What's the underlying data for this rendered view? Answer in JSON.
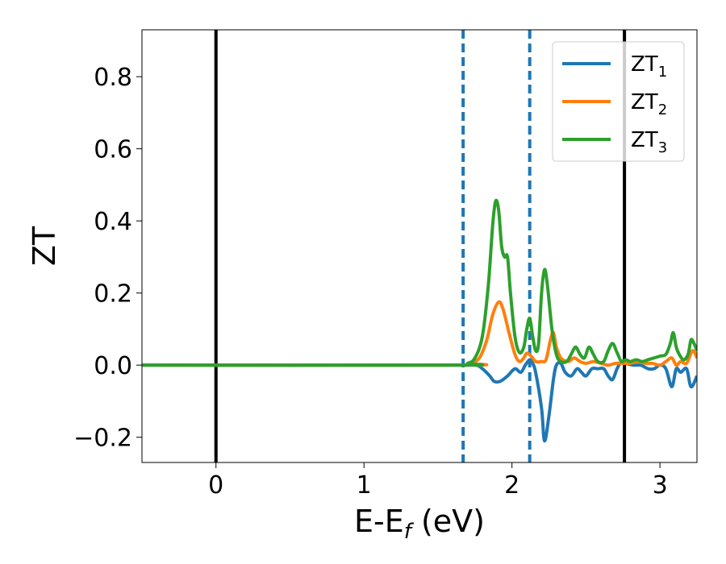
{
  "chart_data": {
    "type": "line",
    "xlabel": {
      "main": "E-E",
      "sub": "f",
      "unit": " (eV)"
    },
    "ylabel": "ZT",
    "xlim": [
      -0.5,
      3.25
    ],
    "ylim": [
      -0.27,
      0.93
    ],
    "xticks": [
      0,
      1,
      2,
      3
    ],
    "xtick_labels": [
      "0",
      "1",
      "2",
      "3"
    ],
    "yticks": [
      -0.2,
      0.0,
      0.2,
      0.4,
      0.6,
      0.8
    ],
    "ytick_labels": [
      "−0.2",
      "0.0",
      "0.2",
      "0.4",
      "0.6",
      "0.8"
    ],
    "grid": false,
    "legend_position": "upper right",
    "vertical_lines": [
      {
        "x": 0,
        "style": "solid",
        "color": "#000000"
      },
      {
        "x": 2.76,
        "style": "solid",
        "color": "#000000"
      },
      {
        "x": 1.67,
        "style": "dashed",
        "color": "#1f77b4"
      },
      {
        "x": 2.12,
        "style": "dashed",
        "color": "#1f77b4"
      }
    ],
    "series": [
      {
        "name": "ZT",
        "sub": "1",
        "color": "#1f77b4",
        "points": [
          [
            -0.5,
            0
          ],
          [
            1.6,
            0
          ],
          [
            1.75,
            0.0
          ],
          [
            1.8,
            -0.01
          ],
          [
            1.85,
            -0.03
          ],
          [
            1.88,
            -0.045
          ],
          [
            1.92,
            -0.045
          ],
          [
            1.97,
            -0.03
          ],
          [
            2.02,
            -0.01
          ],
          [
            2.06,
            -0.02
          ],
          [
            2.09,
            0.0
          ],
          [
            2.12,
            0.015
          ],
          [
            2.14,
            0.005
          ],
          [
            2.16,
            -0.02
          ],
          [
            2.2,
            -0.12
          ],
          [
            2.22,
            -0.21
          ],
          [
            2.25,
            -0.14
          ],
          [
            2.28,
            -0.04
          ],
          [
            2.3,
            0.0
          ],
          [
            2.33,
            0.005
          ],
          [
            2.36,
            -0.02
          ],
          [
            2.4,
            -0.03
          ],
          [
            2.44,
            -0.01
          ],
          [
            2.47,
            -0.02
          ],
          [
            2.5,
            -0.03
          ],
          [
            2.54,
            -0.01
          ],
          [
            2.58,
            -0.01
          ],
          [
            2.62,
            -0.01
          ],
          [
            2.65,
            -0.03
          ],
          [
            2.68,
            -0.04
          ],
          [
            2.71,
            -0.01
          ],
          [
            2.74,
            0.01
          ],
          [
            2.77,
            0.005
          ],
          [
            2.82,
            0.0
          ],
          [
            2.87,
            0.0
          ],
          [
            2.92,
            -0.01
          ],
          [
            2.96,
            -0.01
          ],
          [
            3.0,
            0.0
          ],
          [
            3.04,
            -0.01
          ],
          [
            3.08,
            -0.06
          ],
          [
            3.11,
            -0.01
          ],
          [
            3.14,
            -0.02
          ],
          [
            3.18,
            -0.01
          ],
          [
            3.21,
            -0.06
          ],
          [
            3.25,
            -0.03
          ]
        ]
      },
      {
        "name": "ZT",
        "sub": "2",
        "color": "#ff7f0e",
        "points": [
          [
            -0.5,
            0
          ],
          [
            1.65,
            0
          ],
          [
            1.72,
            0.005
          ],
          [
            1.78,
            0.02
          ],
          [
            1.83,
            0.07
          ],
          [
            1.87,
            0.14
          ],
          [
            1.91,
            0.175
          ],
          [
            1.94,
            0.155
          ],
          [
            1.98,
            0.09
          ],
          [
            2.02,
            0.03
          ],
          [
            2.05,
            0.01
          ],
          [
            2.08,
            0.02
          ],
          [
            2.1,
            0.033
          ],
          [
            2.13,
            0.025
          ],
          [
            2.16,
            0.01
          ],
          [
            2.2,
            0.01
          ],
          [
            2.23,
            0.015
          ],
          [
            2.26,
            0.07
          ],
          [
            2.28,
            0.09
          ],
          [
            2.3,
            0.05
          ],
          [
            2.33,
            0.02
          ],
          [
            2.38,
            0.01
          ],
          [
            2.42,
            0.02
          ],
          [
            2.46,
            0.01
          ],
          [
            2.5,
            0.005
          ],
          [
            2.55,
            0.01
          ],
          [
            2.6,
            0.005
          ],
          [
            2.65,
            0.0
          ],
          [
            2.7,
            0.005
          ],
          [
            2.75,
            0.005
          ],
          [
            2.8,
            0.005
          ],
          [
            2.85,
            0.01
          ],
          [
            2.9,
            0.005
          ],
          [
            2.95,
            0.005
          ],
          [
            3.0,
            0.0
          ],
          [
            3.04,
            0.01
          ],
          [
            3.08,
            0.02
          ],
          [
            3.11,
            0.0
          ],
          [
            3.14,
            0.01
          ],
          [
            3.18,
            0.005
          ],
          [
            3.22,
            0.04
          ],
          [
            3.25,
            0.02
          ]
        ]
      },
      {
        "name": "ZT",
        "sub": "3",
        "color": "#2ca02c",
        "points": [
          [
            -0.5,
            0
          ],
          [
            1.62,
            0
          ],
          [
            1.7,
            0.005
          ],
          [
            1.75,
            0.02
          ],
          [
            1.8,
            0.08
          ],
          [
            1.84,
            0.22
          ],
          [
            1.87,
            0.39
          ],
          [
            1.89,
            0.455
          ],
          [
            1.91,
            0.43
          ],
          [
            1.93,
            0.33
          ],
          [
            1.95,
            0.3
          ],
          [
            1.97,
            0.3
          ],
          [
            1.99,
            0.2
          ],
          [
            2.02,
            0.08
          ],
          [
            2.05,
            0.035
          ],
          [
            2.08,
            0.05
          ],
          [
            2.1,
            0.1
          ],
          [
            2.12,
            0.13
          ],
          [
            2.14,
            0.08
          ],
          [
            2.16,
            0.04
          ],
          [
            2.18,
            0.06
          ],
          [
            2.2,
            0.2
          ],
          [
            2.22,
            0.265
          ],
          [
            2.24,
            0.22
          ],
          [
            2.27,
            0.1
          ],
          [
            2.3,
            0.03
          ],
          [
            2.33,
            0.01
          ],
          [
            2.37,
            0.01
          ],
          [
            2.4,
            0.03
          ],
          [
            2.43,
            0.05
          ],
          [
            2.46,
            0.03
          ],
          [
            2.49,
            0.02
          ],
          [
            2.52,
            0.05
          ],
          [
            2.55,
            0.03
          ],
          [
            2.58,
            0.01
          ],
          [
            2.62,
            0.01
          ],
          [
            2.65,
            0.04
          ],
          [
            2.68,
            0.06
          ],
          [
            2.71,
            0.035
          ],
          [
            2.74,
            0.01
          ],
          [
            2.77,
            0.015
          ],
          [
            2.8,
            0.01
          ],
          [
            2.84,
            0.015
          ],
          [
            2.88,
            0.01
          ],
          [
            2.92,
            0.015
          ],
          [
            2.96,
            0.02
          ],
          [
            3.0,
            0.025
          ],
          [
            3.04,
            0.03
          ],
          [
            3.07,
            0.06
          ],
          [
            3.09,
            0.09
          ],
          [
            3.11,
            0.05
          ],
          [
            3.13,
            0.03
          ],
          [
            3.16,
            0.015
          ],
          [
            3.19,
            0.03
          ],
          [
            3.21,
            0.07
          ],
          [
            3.23,
            0.06
          ],
          [
            3.25,
            0.04
          ]
        ]
      }
    ]
  }
}
